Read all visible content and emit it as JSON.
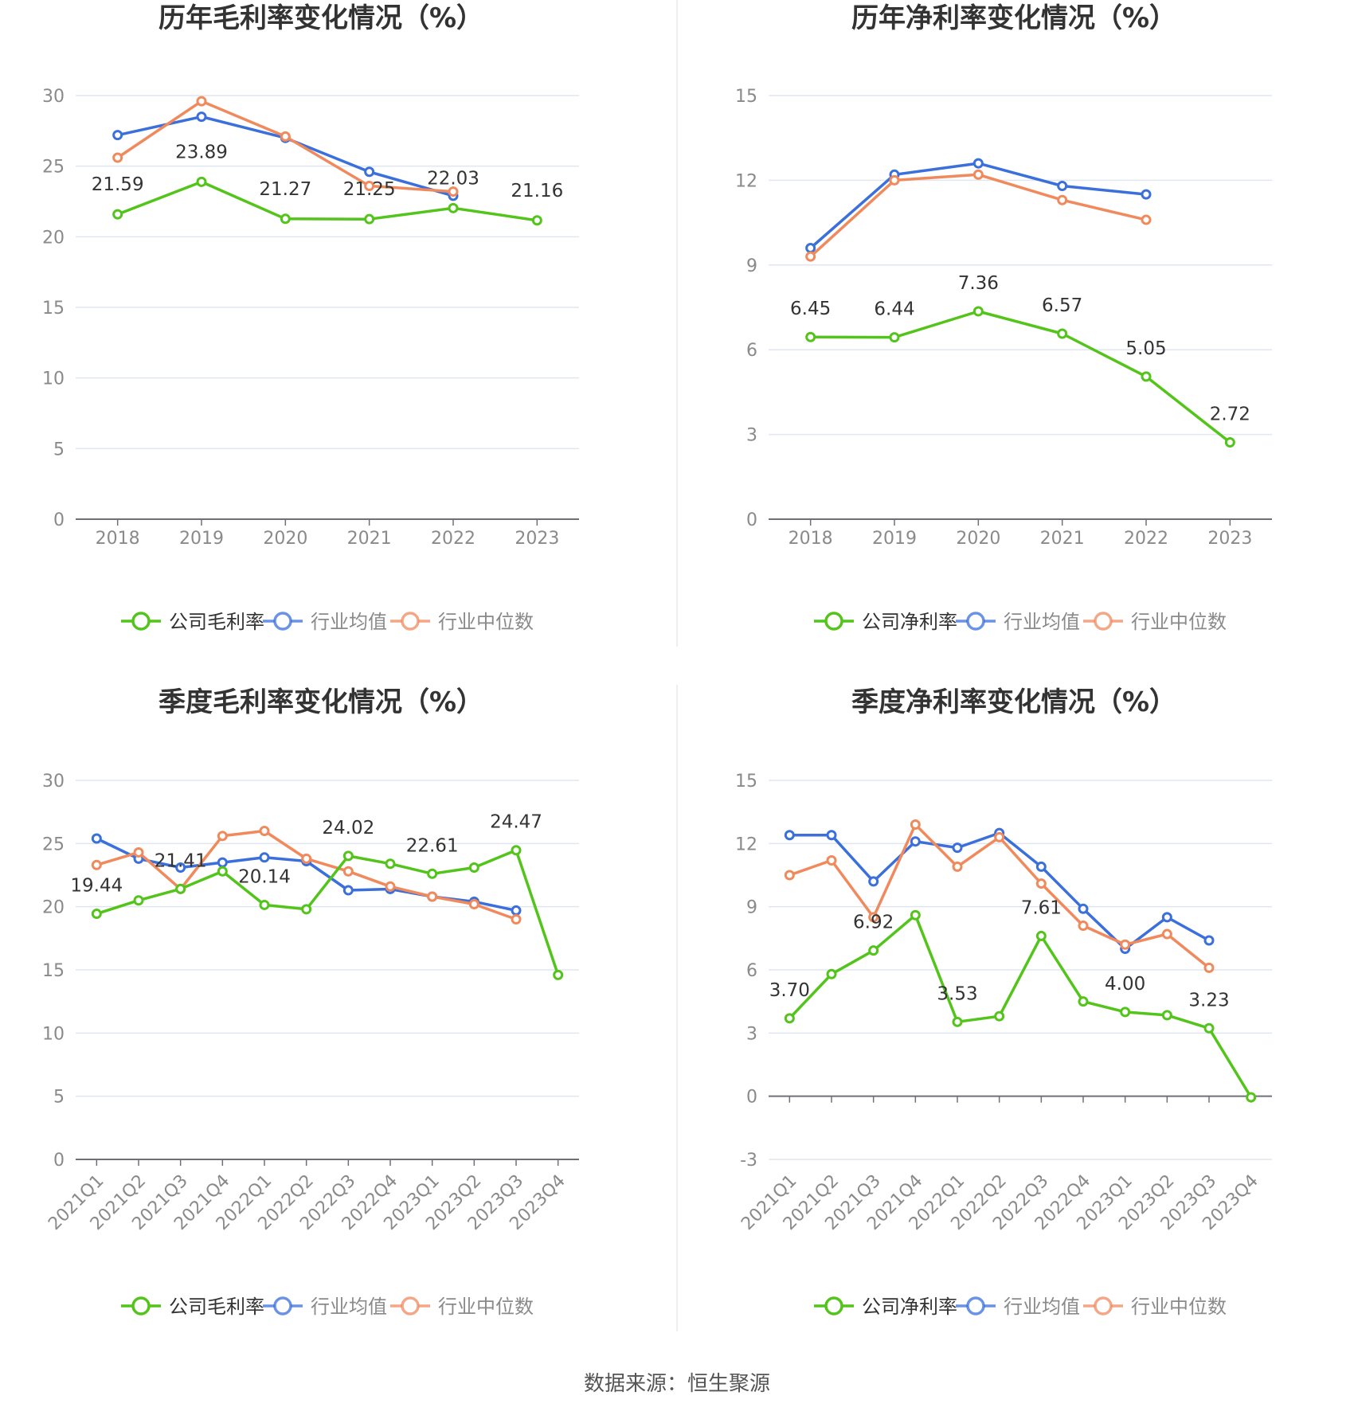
{
  "footer": {
    "source": "数据来源：恒生聚源"
  },
  "colors": {
    "company": "#52c41a",
    "avg": "#3a6fdc",
    "median": "#f08a5d",
    "grid": "#e0e6f1",
    "axis": "#6e7079"
  },
  "chart_data": [
    {
      "type": "line",
      "title": "历年毛利率变化情况（%）",
      "categories": [
        "2018",
        "2019",
        "2020",
        "2021",
        "2022",
        "2023"
      ],
      "ylim": [
        0,
        30
      ],
      "yticks": [
        0,
        5,
        10,
        15,
        20,
        25,
        30
      ],
      "grid": true,
      "legend_position": "bottom",
      "series": [
        {
          "name": "公司毛利率",
          "role": "company",
          "values": [
            21.59,
            23.89,
            21.27,
            21.25,
            22.03,
            21.16
          ],
          "labels": true
        },
        {
          "name": "行业均值",
          "role": "avg",
          "values": [
            27.2,
            28.5,
            27.0,
            24.6,
            22.9,
            null
          ]
        },
        {
          "name": "行业中位数",
          "role": "median",
          "values": [
            25.6,
            29.6,
            27.1,
            23.6,
            23.2,
            null
          ]
        }
      ]
    },
    {
      "type": "line",
      "title": "历年净利率变化情况（%）",
      "categories": [
        "2018",
        "2019",
        "2020",
        "2021",
        "2022",
        "2023"
      ],
      "ylim": [
        0,
        15
      ],
      "yticks": [
        0,
        3,
        6,
        9,
        12,
        15
      ],
      "grid": true,
      "legend_position": "bottom",
      "series": [
        {
          "name": "公司净利率",
          "role": "company",
          "values": [
            6.45,
            6.44,
            7.36,
            6.57,
            5.05,
            2.72
          ],
          "labels": true
        },
        {
          "name": "行业均值",
          "role": "avg",
          "values": [
            9.6,
            12.2,
            12.6,
            11.8,
            11.5,
            null
          ]
        },
        {
          "name": "行业中位数",
          "role": "median",
          "values": [
            9.3,
            12.0,
            12.2,
            11.3,
            10.6,
            null
          ]
        }
      ]
    },
    {
      "type": "line",
      "title": "季度毛利率变化情况（%）",
      "categories": [
        "2021Q1",
        "2021Q2",
        "2021Q3",
        "2021Q4",
        "2022Q1",
        "2022Q2",
        "2022Q3",
        "2022Q4",
        "2023Q1",
        "2023Q2",
        "2023Q3",
        "2023Q4"
      ],
      "ylim": [
        0,
        30
      ],
      "yticks": [
        0,
        5,
        10,
        15,
        20,
        25,
        30
      ],
      "grid": true,
      "legend_position": "bottom",
      "rotate_x_labels": true,
      "series": [
        {
          "name": "公司毛利率",
          "role": "company",
          "values": [
            19.44,
            20.5,
            21.41,
            22.8,
            20.14,
            19.8,
            24.02,
            23.4,
            22.61,
            23.1,
            24.47,
            14.6
          ],
          "labeled": [
            19.44,
            null,
            21.41,
            null,
            20.14,
            null,
            24.02,
            null,
            22.61,
            null,
            24.47,
            null
          ]
        },
        {
          "name": "行业均值",
          "role": "avg",
          "values": [
            25.4,
            23.8,
            23.1,
            23.5,
            23.9,
            23.6,
            21.3,
            21.4,
            20.8,
            20.4,
            19.7,
            null
          ]
        },
        {
          "name": "行业中位数",
          "role": "median",
          "values": [
            23.3,
            24.3,
            21.4,
            25.6,
            26.0,
            23.8,
            22.8,
            21.6,
            20.8,
            20.2,
            19.0,
            null
          ]
        }
      ]
    },
    {
      "type": "line",
      "title": "季度净利率变化情况（%）",
      "categories": [
        "2021Q1",
        "2021Q2",
        "2021Q3",
        "2021Q4",
        "2022Q1",
        "2022Q2",
        "2022Q3",
        "2022Q4",
        "2023Q1",
        "2023Q2",
        "2023Q3",
        "2023Q4"
      ],
      "ylim": [
        -3,
        15
      ],
      "yticks": [
        -3,
        0,
        3,
        6,
        9,
        12,
        15
      ],
      "grid": true,
      "legend_position": "bottom",
      "rotate_x_labels": true,
      "series": [
        {
          "name": "公司净利率",
          "role": "company",
          "values": [
            3.7,
            5.8,
            6.92,
            8.6,
            3.53,
            3.8,
            7.61,
            4.5,
            4.0,
            3.85,
            3.23,
            -0.05
          ],
          "labeled": [
            3.7,
            null,
            6.92,
            null,
            3.53,
            null,
            7.61,
            null,
            4.0,
            null,
            3.23,
            null
          ]
        },
        {
          "name": "行业均值",
          "role": "avg",
          "values": [
            12.4,
            12.4,
            10.2,
            12.1,
            11.8,
            12.5,
            10.9,
            8.9,
            7.0,
            8.5,
            7.4,
            null
          ]
        },
        {
          "name": "行业中位数",
          "role": "median",
          "values": [
            10.5,
            11.2,
            8.5,
            12.9,
            10.9,
            12.3,
            10.1,
            8.1,
            7.2,
            7.7,
            6.1,
            null
          ]
        }
      ]
    }
  ]
}
